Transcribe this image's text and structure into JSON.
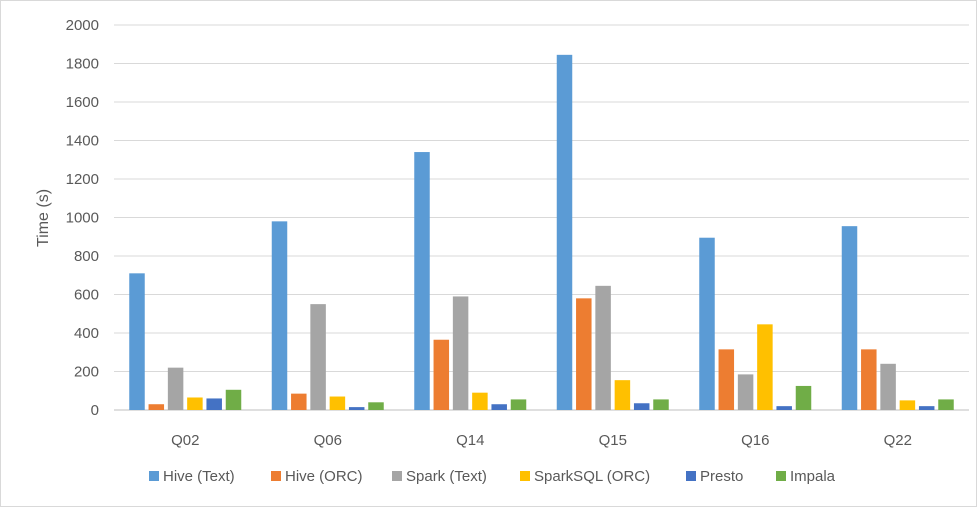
{
  "chart_data": {
    "type": "bar",
    "title": "",
    "xlabel": "",
    "ylabel": "Time (s)",
    "ylim": [
      0,
      2000
    ],
    "yticks": [
      0,
      200,
      400,
      600,
      800,
      1000,
      1200,
      1400,
      1600,
      1800,
      2000
    ],
    "grid": true,
    "legend_position": "bottom",
    "categories": [
      "Q02",
      "Q06",
      "Q14",
      "Q15",
      "Q16",
      "Q22"
    ],
    "series": [
      {
        "name": "Hive (Text)",
        "color": "#5b9bd5",
        "values": [
          710,
          980,
          1340,
          1845,
          895,
          955
        ]
      },
      {
        "name": "Hive (ORC)",
        "color": "#ed7d31",
        "values": [
          30,
          85,
          365,
          580,
          315,
          315
        ]
      },
      {
        "name": "Spark (Text)",
        "color": "#a5a5a5",
        "values": [
          220,
          550,
          590,
          645,
          185,
          240
        ]
      },
      {
        "name": "SparkSQL  (ORC)",
        "color": "#ffc000",
        "values": [
          65,
          70,
          90,
          155,
          445,
          50
        ]
      },
      {
        "name": "Presto",
        "color": "#4472c4",
        "values": [
          60,
          15,
          30,
          35,
          20,
          20
        ]
      },
      {
        "name": "Impala",
        "color": "#70ad47",
        "values": [
          105,
          40,
          55,
          55,
          125,
          55
        ]
      }
    ]
  }
}
